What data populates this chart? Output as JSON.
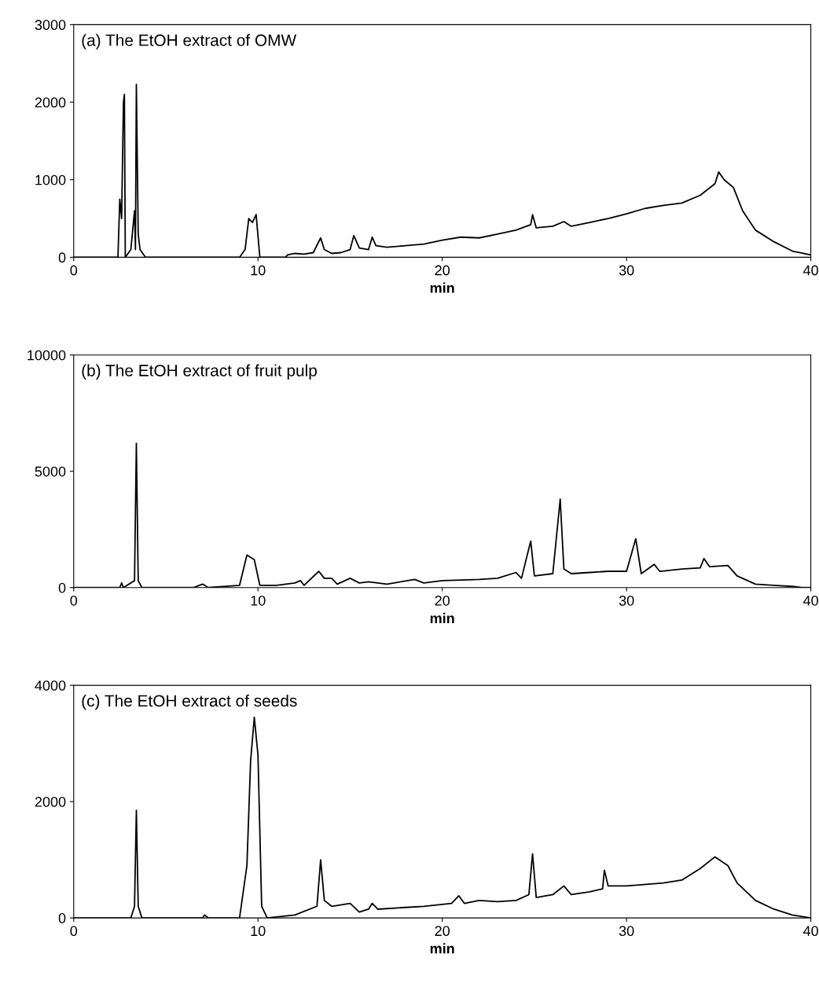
{
  "chart_data": [
    {
      "type": "line",
      "xlabel": "min",
      "annotations": [
        "(a) The EtOH extract of OMW"
      ],
      "xlim": [
        0,
        40
      ],
      "xticks": [
        0,
        10,
        20,
        30,
        40
      ],
      "ylim": [
        0,
        3000
      ],
      "yticks": [
        0,
        1000,
        2000,
        3000
      ],
      "grid": false,
      "legend": false,
      "marker": "none",
      "line_style": "solid",
      "series": [
        {
          "color": "#000000",
          "x": [
            0,
            2.4,
            2.5,
            2.6,
            2.7,
            2.75,
            2.8,
            3.1,
            3.3,
            3.35,
            3.4,
            3.5,
            3.6,
            3.9,
            9.0,
            9.3,
            9.5,
            9.7,
            9.9,
            10.1,
            11.5,
            11.6,
            12,
            12.5,
            13,
            13.4,
            13.6,
            14,
            14.5,
            15,
            15.2,
            15.5,
            16,
            16.2,
            16.4,
            17,
            18,
            19,
            20,
            21,
            22,
            23,
            24,
            24.8,
            24.9,
            25.1,
            26,
            26.6,
            27,
            28,
            29,
            30,
            31,
            32,
            33,
            34,
            34.8,
            35,
            35.3,
            35.8,
            36.3,
            37,
            38,
            39,
            40
          ],
          "values": [
            0,
            0,
            750,
            500,
            2000,
            2100,
            0,
            100,
            600,
            100,
            2230,
            300,
            100,
            0,
            0,
            100,
            500,
            450,
            550,
            0,
            0,
            30,
            50,
            40,
            60,
            250,
            100,
            50,
            60,
            100,
            280,
            120,
            100,
            260,
            150,
            130,
            150,
            170,
            220,
            260,
            250,
            300,
            350,
            420,
            550,
            380,
            400,
            460,
            400,
            450,
            500,
            560,
            630,
            670,
            700,
            800,
            950,
            1100,
            1000,
            900,
            600,
            350,
            200,
            80,
            30
          ]
        }
      ]
    },
    {
      "type": "line",
      "xlabel": "min",
      "annotations": [
        "(b) The EtOH extract of fruit pulp"
      ],
      "xlim": [
        0,
        40
      ],
      "xticks": [
        0,
        10,
        20,
        30,
        40
      ],
      "ylim": [
        0,
        10000
      ],
      "yticks": [
        0,
        5000,
        10000
      ],
      "grid": false,
      "legend": false,
      "marker": "none",
      "line_style": "solid",
      "series": [
        {
          "color": "#000000",
          "x": [
            0,
            2.5,
            2.6,
            2.7,
            3.3,
            3.4,
            3.5,
            3.7,
            6.5,
            7,
            7.3,
            9,
            9.4,
            9.8,
            10.1,
            11,
            12,
            12.3,
            12.5,
            13.3,
            13.6,
            14,
            14.3,
            15,
            15.5,
            16,
            17,
            18.5,
            19,
            20,
            22,
            23,
            24,
            24.3,
            24.8,
            25,
            26,
            26.4,
            26.6,
            27,
            28,
            29,
            30,
            30.5,
            30.8,
            31.5,
            31.8,
            33,
            34,
            34.2,
            34.5,
            35.5,
            36,
            37,
            38,
            39,
            39.5,
            40
          ],
          "values": [
            0,
            0,
            200,
            0,
            300,
            6200,
            300,
            0,
            0,
            150,
            0,
            100,
            1400,
            1200,
            100,
            100,
            200,
            300,
            100,
            700,
            400,
            400,
            150,
            400,
            200,
            250,
            150,
            350,
            200,
            300,
            350,
            400,
            650,
            400,
            2000,
            500,
            600,
            3800,
            800,
            600,
            650,
            700,
            700,
            2100,
            600,
            1000,
            700,
            800,
            850,
            1250,
            900,
            950,
            500,
            150,
            100,
            50,
            0,
            0
          ]
        }
      ]
    },
    {
      "type": "line",
      "xlabel": "min",
      "annotations": [
        "(c) The EtOH extract of seeds"
      ],
      "xlim": [
        0,
        40
      ],
      "xticks": [
        0,
        10,
        20,
        30,
        40
      ],
      "ylim": [
        0,
        4000
      ],
      "yticks": [
        0,
        2000,
        4000
      ],
      "grid": false,
      "legend": false,
      "marker": "none",
      "line_style": "solid",
      "series": [
        {
          "color": "#000000",
          "x": [
            0,
            3.1,
            3.3,
            3.4,
            3.5,
            3.7,
            7,
            7.1,
            7.3,
            9,
            9.4,
            9.6,
            9.8,
            10,
            10.2,
            10.5,
            12,
            13.2,
            13.4,
            13.6,
            14,
            15,
            15.5,
            16,
            16.2,
            16.5,
            18,
            19,
            20.5,
            20.9,
            21.2,
            22,
            23,
            24,
            24.7,
            24.9,
            25.1,
            26,
            26.6,
            27,
            28,
            28.7,
            28.8,
            29,
            30,
            32,
            33,
            34,
            34.8,
            35.5,
            36,
            37,
            38,
            39,
            40
          ],
          "values": [
            0,
            0,
            200,
            1850,
            200,
            0,
            0,
            50,
            0,
            0,
            900,
            2700,
            3450,
            2800,
            200,
            0,
            50,
            200,
            1000,
            300,
            200,
            250,
            100,
            150,
            250,
            150,
            180,
            200,
            250,
            380,
            250,
            300,
            280,
            300,
            400,
            1100,
            350,
            400,
            550,
            400,
            450,
            500,
            820,
            550,
            550,
            600,
            650,
            850,
            1050,
            900,
            600,
            300,
            150,
            50,
            0
          ]
        }
      ]
    }
  ]
}
